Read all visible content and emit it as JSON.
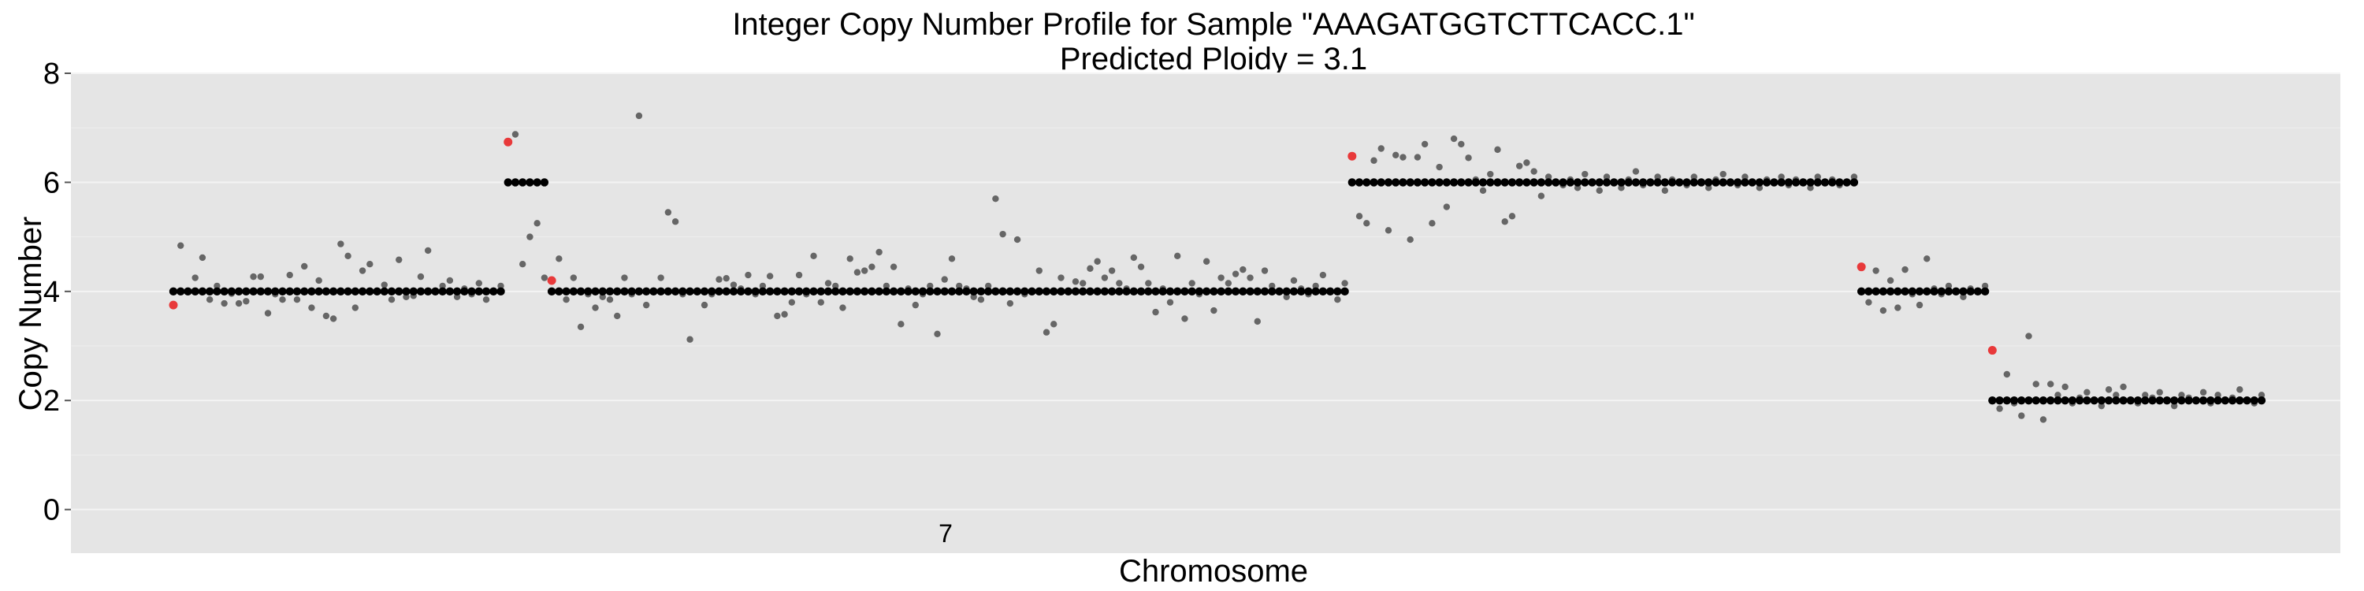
{
  "chart_data": {
    "type": "scatter",
    "title": "Integer Copy Number Profile for Sample \"AAAGATGGTCTTCACC.1\"",
    "subtitle": "Predicted Ploidy = 3.1",
    "xlabel": "Chromosome",
    "ylabel": "Copy Number",
    "ylim": [
      -0.8,
      8
    ],
    "yticks": [
      0,
      2,
      4,
      6,
      8
    ],
    "grid": true,
    "x_tick_labels": [
      "7"
    ],
    "colors": {
      "panel": "#e5e5e5",
      "grid": "#f4f4f4",
      "integer": "#000000",
      "raw": "#666666",
      "breakpoint": "#e8393a"
    },
    "segments": [
      {
        "copy_number": 4,
        "bins": 46,
        "raw": [
          3.75,
          4.84,
          4.0,
          4.25,
          4.62,
          3.85,
          4.1,
          3.78,
          3.96,
          3.78,
          3.82,
          4.27,
          4.27,
          3.6,
          3.95,
          3.85,
          4.3,
          3.85,
          4.46,
          3.7,
          4.2,
          3.55,
          3.5,
          4.87,
          4.65,
          3.7,
          4.38,
          4.5,
          4.0,
          4.12,
          3.85,
          4.58,
          3.9,
          3.92,
          4.27,
          4.75,
          4.0,
          4.1,
          4.2,
          3.9,
          4.05,
          3.95,
          4.15,
          3.85,
          4.0,
          4.1
        ]
      },
      {
        "copy_number": 6,
        "bins": 6,
        "raw": [
          6.74,
          6.88,
          4.5,
          5.0,
          5.25,
          4.25
        ]
      },
      {
        "copy_number": 4,
        "bins": 110,
        "raw": [
          4.2,
          4.6,
          3.85,
          4.25,
          3.35,
          3.95,
          3.7,
          3.9,
          3.85,
          3.55,
          4.25,
          3.95,
          7.22,
          3.75,
          4.0,
          4.25,
          5.45,
          5.28,
          3.95,
          3.12,
          4.0,
          3.75,
          3.95,
          4.22,
          4.24,
          4.12,
          4.05,
          4.3,
          3.95,
          4.1,
          4.28,
          3.55,
          3.58,
          3.8,
          4.3,
          3.95,
          4.65,
          3.8,
          4.15,
          4.1,
          3.7,
          4.6,
          4.35,
          4.38,
          4.45,
          4.72,
          4.1,
          4.45,
          3.4,
          4.05,
          3.75,
          3.95,
          4.1,
          3.22,
          4.22,
          4.6,
          4.1,
          4.05,
          3.9,
          3.85,
          4.1,
          5.7,
          5.05,
          3.78,
          4.95,
          3.95,
          4.0,
          4.38,
          3.25,
          3.4,
          4.25,
          4.0,
          4.18,
          4.15,
          4.42,
          4.55,
          4.25,
          4.38,
          4.15,
          4.05,
          4.62,
          4.45,
          4.15,
          3.62,
          4.05,
          3.8,
          4.65,
          3.5,
          4.15,
          3.95,
          4.55,
          3.65,
          4.25,
          4.15,
          4.32,
          4.4,
          4.25,
          3.45,
          4.38,
          4.1,
          4.0,
          3.9,
          4.2,
          4.05,
          3.95,
          4.1,
          4.3,
          4.0,
          3.85,
          4.15
        ]
      },
      {
        "copy_number": 6,
        "bins": 70,
        "raw": [
          6.48,
          5.38,
          5.25,
          6.4,
          6.62,
          5.12,
          6.5,
          6.46,
          4.95,
          6.46,
          6.7,
          5.25,
          6.28,
          5.55,
          6.8,
          6.7,
          6.45,
          6.05,
          5.85,
          6.15,
          6.6,
          5.28,
          5.38,
          6.3,
          6.36,
          6.2,
          5.75,
          6.1,
          6.0,
          5.95,
          6.05,
          5.9,
          6.15,
          6.0,
          5.85,
          6.1,
          6.0,
          5.9,
          6.05,
          6.2,
          5.95,
          6.0,
          6.1,
          5.85,
          6.05,
          6.0,
          5.95,
          6.1,
          6.0,
          5.9,
          6.05,
          6.15,
          6.0,
          5.95,
          6.1,
          6.0,
          5.9,
          6.05,
          6.0,
          6.1,
          5.95,
          6.05,
          6.0,
          5.9,
          6.1,
          6.0,
          6.05,
          5.95,
          6.0,
          6.1
        ]
      },
      {
        "copy_number": 4,
        "bins": 18,
        "raw": [
          4.45,
          3.8,
          4.38,
          3.65,
          4.2,
          3.7,
          4.4,
          3.95,
          3.75,
          4.6,
          4.05,
          3.95,
          4.1,
          4.0,
          3.9,
          4.05,
          4.0,
          4.1
        ]
      },
      {
        "copy_number": 2,
        "bins": 38,
        "raw": [
          2.92,
          1.85,
          2.48,
          1.95,
          1.72,
          3.18,
          2.3,
          1.65,
          2.3,
          2.1,
          2.25,
          1.95,
          2.05,
          2.15,
          2.0,
          1.9,
          2.2,
          2.1,
          2.25,
          2.0,
          1.95,
          2.1,
          2.05,
          2.15,
          2.0,
          1.9,
          2.1,
          2.05,
          2.0,
          2.15,
          1.95,
          2.1,
          2.0,
          2.05,
          2.2,
          2.0,
          1.95,
          2.1
        ]
      }
    ]
  }
}
